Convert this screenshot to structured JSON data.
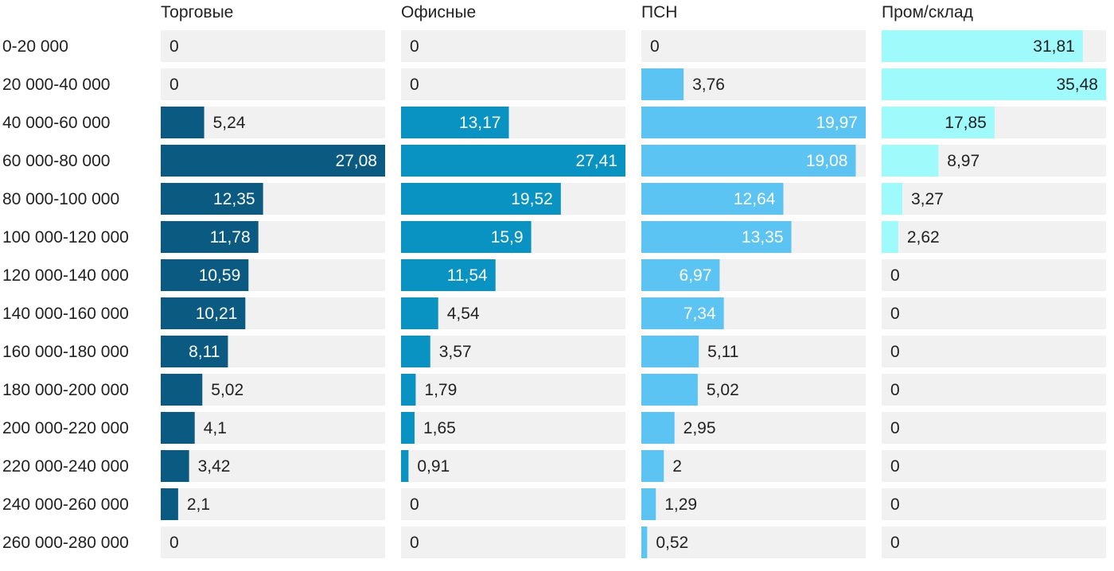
{
  "chart_data": {
    "type": "bar",
    "orientation": "horizontal",
    "layout": "small-multiples",
    "categories": [
      "0-20 000",
      "20 000-40 000",
      "40 000-60 000",
      "60 000-80 000",
      "80 000-100 000",
      "100 000-120 000",
      "120 000-140 000",
      "140 000-160 000",
      "160 000-180 000",
      "180 000-200 000",
      "200 000-220 000",
      "220 000-240 000",
      "240 000-260 000",
      "260 000-280 000"
    ],
    "series": [
      {
        "name": "Торговые",
        "color": "#0a5a82",
        "values": [
          0,
          0,
          5.24,
          27.08,
          12.35,
          11.78,
          10.59,
          10.21,
          8.11,
          5.02,
          4.1,
          3.42,
          2.1,
          0
        ],
        "labels": [
          "0",
          "0",
          "5,24",
          "27,08",
          "12,35",
          "11,78",
          "10,59",
          "10,21",
          "8,11",
          "5,02",
          "4,1",
          "3,42",
          "2,1",
          "0"
        ]
      },
      {
        "name": "Офисные",
        "color": "#0993c2",
        "values": [
          0,
          0,
          13.17,
          27.41,
          19.52,
          15.9,
          11.54,
          4.54,
          3.57,
          1.79,
          1.65,
          0.91,
          0,
          0
        ],
        "labels": [
          "0",
          "0",
          "13,17",
          "27,41",
          "19,52",
          "15,9",
          "11,54",
          "4,54",
          "3,57",
          "1,79",
          "1,65",
          "0,91",
          "0",
          "0"
        ]
      },
      {
        "name": "ПСН",
        "color": "#5cc4f2",
        "values": [
          0,
          3.76,
          19.97,
          19.08,
          12.64,
          13.35,
          6.97,
          7.34,
          5.11,
          5.02,
          2.95,
          2,
          1.29,
          0.52
        ],
        "labels": [
          "0",
          "3,76",
          "19,97",
          "19,08",
          "12,64",
          "13,35",
          "6,97",
          "7,34",
          "5,11",
          "5,02",
          "2,95",
          "2",
          "1,29",
          "0,52"
        ]
      },
      {
        "name": "Пром/склад",
        "color": "#9ffafc",
        "values": [
          31.81,
          35.48,
          17.85,
          8.97,
          3.27,
          2.62,
          0,
          0,
          0,
          0,
          0,
          0,
          0,
          0
        ],
        "labels": [
          "31,81",
          "35,48",
          "17,85",
          "8,97",
          "3,27",
          "2,62",
          "0",
          "0",
          "0",
          "0",
          "0",
          "0",
          "0",
          "0"
        ]
      }
    ],
    "panel_max": [
      27.08,
      27.41,
      19.97,
      35.48
    ],
    "background_track_color": "#f1f1f1",
    "label_color_light": "#ffffff",
    "label_color_dark": "#222222"
  }
}
